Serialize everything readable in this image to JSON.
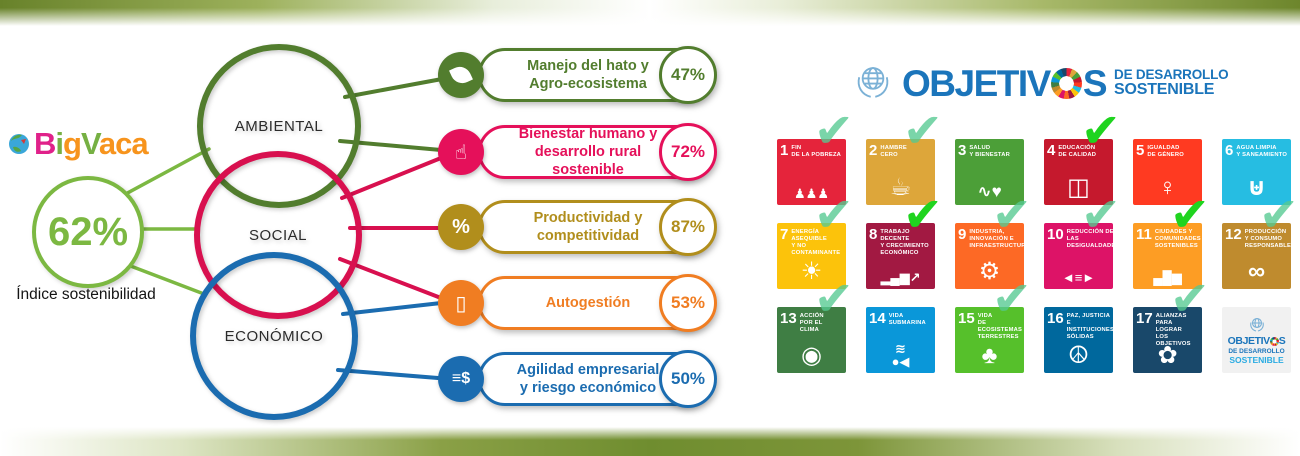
{
  "colors": {
    "light_green": "#7cb842",
    "ambiental_green": "#527d2e",
    "social_pink": "#d8104f",
    "economico_blue": "#1b6cb0",
    "gold": "#b18e1c",
    "orange": "#f07d22",
    "sdg_blue": "#1b75bb",
    "sdg_cyan": "#29abe2",
    "check_soft": "#55c991",
    "check_vivid": "#1fd41f",
    "band_olive": "#6f8d2f"
  },
  "brand": {
    "globe_icon": "globe-icon",
    "letters": [
      {
        "t": "B",
        "c": "#e0218a"
      },
      {
        "t": "i",
        "c": "#76b043"
      },
      {
        "t": "g",
        "c": "#f7941d"
      },
      {
        "t": "V",
        "c": "#76b043"
      },
      {
        "t": "a",
        "c": "#f7941d"
      },
      {
        "t": "c",
        "c": "#f7941d"
      },
      {
        "t": "a",
        "c": "#f7941d"
      }
    ],
    "index_value": "62%",
    "index_label": "Índice sostenibilidad"
  },
  "venn": {
    "circles": [
      {
        "label": "AMBIENTAL",
        "color": "#527d2e"
      },
      {
        "label": "SOCIAL",
        "color": "#d8104f"
      },
      {
        "label": "ECONÓMICO",
        "color": "#1b6cb0"
      }
    ]
  },
  "indicators": [
    {
      "label_lines": [
        "Manejo del hato y",
        "Agro-ecosistema"
      ],
      "value": "47%",
      "color": "#527d2e",
      "icon": "leaf-icon",
      "glyph": ""
    },
    {
      "label_lines": [
        "Bienestar humano y",
        "desarrollo rural sostenible"
      ],
      "value": "72%",
      "color": "#e5105a",
      "icon": "person-care-icon",
      "glyph": "☝"
    },
    {
      "label_lines": [
        "Productividad y",
        "competitividad"
      ],
      "value": "87%",
      "color": "#b18e1c",
      "icon": "percent-badge-icon",
      "glyph": "%"
    },
    {
      "label_lines": [
        "Autogestión"
      ],
      "value": "53%",
      "color": "#f07d22",
      "icon": "smartphone-icon",
      "glyph": "▯"
    },
    {
      "label_lines": [
        "Agilidad empresarial",
        "y riesgo económico"
      ],
      "value": "50%",
      "color": "#1b6cb0",
      "icon": "coins-icon",
      "glyph": "≡$"
    }
  ],
  "sdg": {
    "header": {
      "title_left": "OBJETIV",
      "title_right": "S",
      "wheel_icon": "sdg-color-wheel-icon",
      "un_icon": "un-emblem-icon",
      "subtitle_line1": "DE DESARROLLO",
      "subtitle_line2": "SOSTENIBLE"
    },
    "logo_tile": {
      "title_left": "OBJETIV",
      "title_right": "S",
      "line1": "DE DESARROLLO",
      "line2": "SOSTENIBLE"
    },
    "check_glyph": "✔",
    "goals": [
      {
        "num": "1",
        "title": "FIN\nDE LA POBREZA",
        "color": "#E5243B",
        "icon": "family-icon",
        "glyph": "♟♟♟",
        "checked": true,
        "vivid": false
      },
      {
        "num": "2",
        "title": "HAMBRE\nCERO",
        "color": "#DDA63A",
        "icon": "bowl-steam-icon",
        "glyph": "☕",
        "checked": true,
        "vivid": false
      },
      {
        "num": "3",
        "title": "SALUD\nY BIENESTAR",
        "color": "#4C9F38",
        "icon": "heartbeat-icon",
        "glyph": "∿♥",
        "checked": false,
        "vivid": false
      },
      {
        "num": "4",
        "title": "EDUCACIÓN\nDE CALIDAD",
        "color": "#C5192D",
        "icon": "open-book-icon",
        "glyph": "◫",
        "checked": true,
        "vivid": true
      },
      {
        "num": "5",
        "title": "IGUALDAD\nDE GÉNERO",
        "color": "#FF3A21",
        "icon": "gender-icon",
        "glyph": "♀",
        "checked": false,
        "vivid": false
      },
      {
        "num": "6",
        "title": "AGUA LIMPIA\nY SANEAMIENTO",
        "color": "#26BDE2",
        "icon": "water-glass-icon",
        "glyph": "⊎",
        "checked": false,
        "vivid": false
      },
      {
        "num": "7",
        "title": "ENERGÍA ASEQUIBLE\nY NO CONTAMINANTE",
        "color": "#FCC30B",
        "icon": "sun-icon",
        "glyph": "☀",
        "checked": true,
        "vivid": false
      },
      {
        "num": "8",
        "title": "TRABAJO DECENTE\nY CRECIMIENTO\nECONÓMICO",
        "color": "#A21942",
        "icon": "growth-chart-icon",
        "glyph": "▂▄▆↗",
        "checked": true,
        "vivid": true
      },
      {
        "num": "9",
        "title": "INDUSTRIA,\nINNOVACIÓN E\nINFRAESTRUCTURA",
        "color": "#FD6925",
        "icon": "industry-cubes-icon",
        "glyph": "⚙",
        "checked": true,
        "vivid": false
      },
      {
        "num": "10",
        "title": "REDUCCIÓN DE LAS\nDESIGUALDADES",
        "color": "#DD1367",
        "icon": "equality-arrows-icon",
        "glyph": "◄≡►",
        "checked": true,
        "vivid": false
      },
      {
        "num": "11",
        "title": "CIUDADES Y\nCOMUNIDADES\nSOSTENIBLES",
        "color": "#FD9D24",
        "icon": "city-skyline-icon",
        "glyph": "▄█▆",
        "checked": true,
        "vivid": true
      },
      {
        "num": "12",
        "title": "PRODUCCIÓN\nY CONSUMO\nRESPONSABLES",
        "color": "#BF8B2E",
        "icon": "infinity-icon",
        "glyph": "∞",
        "checked": true,
        "vivid": false
      },
      {
        "num": "13",
        "title": "ACCIÓN\nPOR EL CLIMA",
        "color": "#3F7E44",
        "icon": "eye-globe-icon",
        "glyph": "◉",
        "checked": true,
        "vivid": false
      },
      {
        "num": "14",
        "title": "VIDA\nSUBMARINA",
        "color": "#0A97D9",
        "icon": "fish-waves-icon",
        "glyph": "≋\n●◀",
        "checked": false,
        "vivid": false
      },
      {
        "num": "15",
        "title": "VIDA\nDE ECOSISTEMAS\nTERRESTRES",
        "color": "#56C02B",
        "icon": "tree-icon",
        "glyph": "♣",
        "checked": true,
        "vivid": false
      },
      {
        "num": "16",
        "title": "PAZ, JUSTICIA\nE INSTITUCIONES\nSÓLIDAS",
        "color": "#00689D",
        "icon": "dove-peace-icon",
        "glyph": "☮",
        "checked": false,
        "vivid": false
      },
      {
        "num": "17",
        "title": "ALIANZAS PARA\nLOGRAR\nLOS OBJETIVOS",
        "color": "#19486A",
        "icon": "rings-icon",
        "glyph": "✿",
        "checked": true,
        "vivid": false
      }
    ]
  }
}
